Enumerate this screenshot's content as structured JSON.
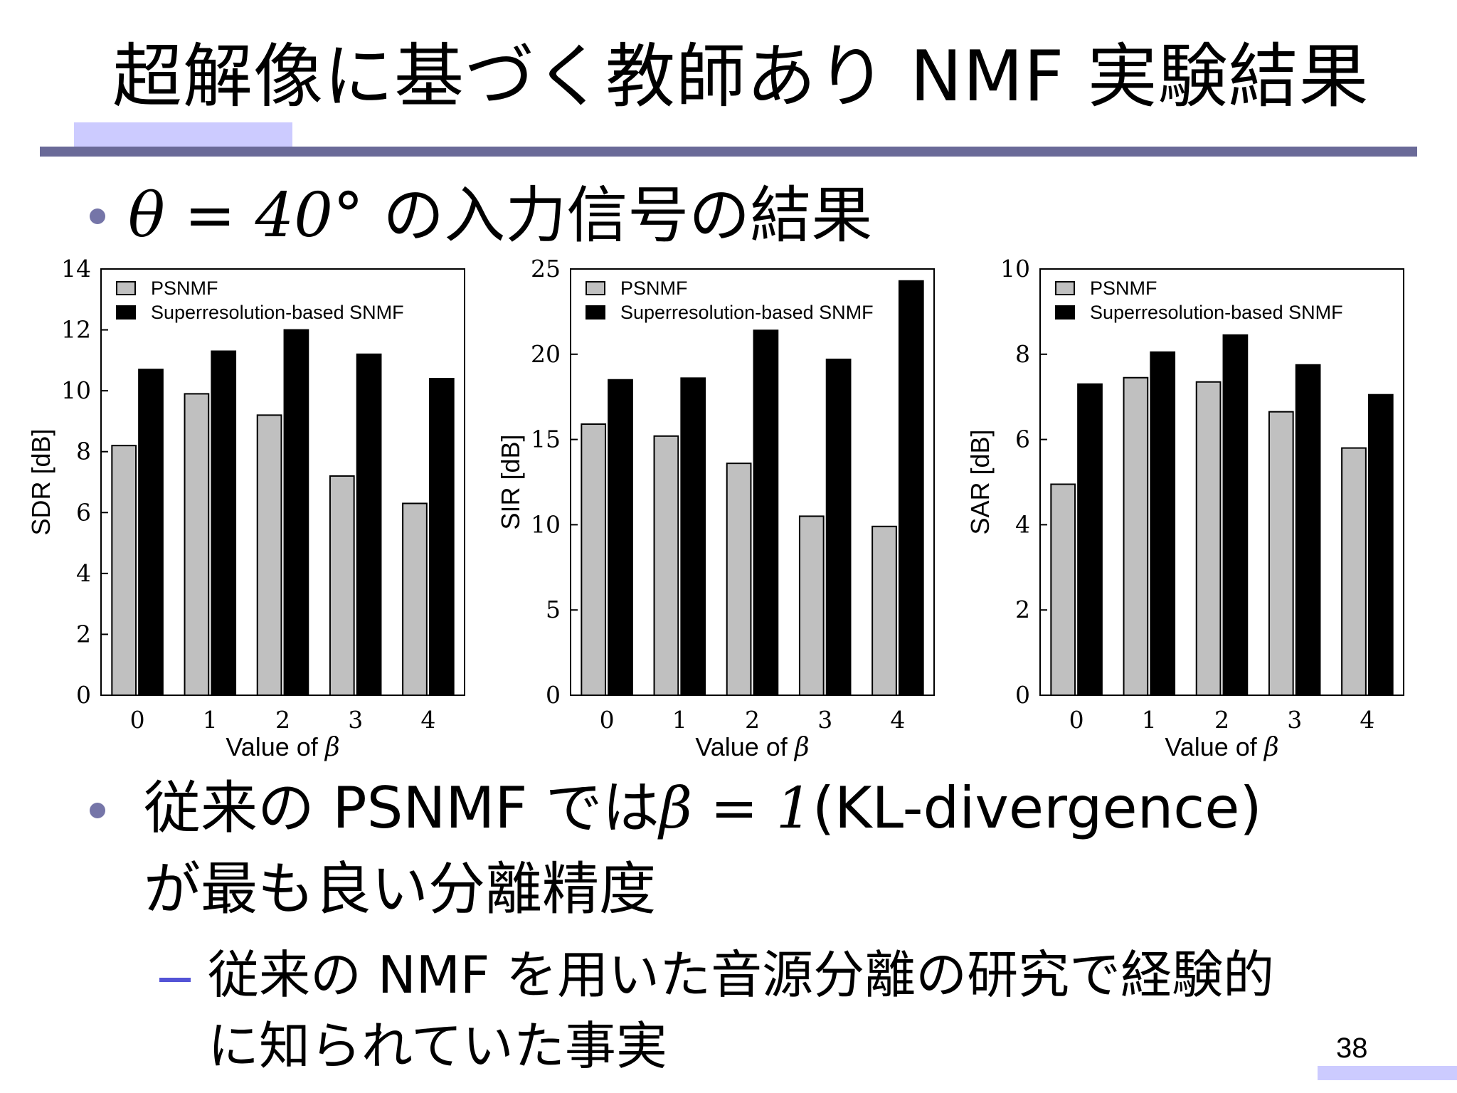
{
  "slide": {
    "title": "超解像に基づく教師あり NMF 実験結果",
    "bullet1": {
      "math": "θ = 40°",
      "text": " の入力信号の結果"
    },
    "bullet2": {
      "pre": "従来の PSNMF では",
      "math": "β = 1",
      "post": "(KL-divergence)",
      "line2": "が最も良い分離精度"
    },
    "sub_bullet": {
      "line1": "従来の NMF を用いた音源分離の研究で経験的",
      "line2": "に知られていた事実"
    },
    "page_number": "38"
  },
  "colors": {
    "psnmf": "#c0c0c0",
    "superres": "#000000",
    "rule": "#6a6a98",
    "accent": "#cccbff",
    "bullet": "#7575a8",
    "dash": "#5353d6"
  },
  "chart_data": [
    {
      "type": "bar",
      "categories": [
        "0",
        "1",
        "2",
        "3",
        "4"
      ],
      "xlabel": "Value of β",
      "ylabel": "SDR [dB]",
      "ylim": [
        0,
        14
      ],
      "yticks": [
        0,
        2,
        4,
        6,
        8,
        10,
        12,
        14
      ],
      "legend_position": "top-left",
      "series": [
        {
          "name": "PSNMF",
          "values": [
            8.2,
            9.9,
            9.2,
            7.2,
            6.3
          ]
        },
        {
          "name": "Superresolution-based SNMF",
          "values": [
            10.7,
            11.3,
            12.0,
            11.2,
            10.4
          ]
        }
      ]
    },
    {
      "type": "bar",
      "categories": [
        "0",
        "1",
        "2",
        "3",
        "4"
      ],
      "xlabel": "Value of β",
      "ylabel": "SIR [dB]",
      "ylim": [
        0,
        25
      ],
      "yticks": [
        0,
        5,
        10,
        15,
        20,
        25
      ],
      "legend_position": "top-left",
      "series": [
        {
          "name": "PSNMF",
          "values": [
            15.9,
            15.2,
            13.6,
            10.5,
            9.9
          ]
        },
        {
          "name": "Superresolution-based SNMF",
          "values": [
            18.5,
            18.6,
            21.4,
            19.7,
            24.3
          ]
        }
      ]
    },
    {
      "type": "bar",
      "categories": [
        "0",
        "1",
        "2",
        "3",
        "4"
      ],
      "xlabel": "Value of β",
      "ylabel": "SAR [dB]",
      "ylim": [
        0,
        10
      ],
      "yticks": [
        0,
        2,
        4,
        6,
        8,
        10
      ],
      "legend_position": "top-left",
      "series": [
        {
          "name": "PSNMF",
          "values": [
            4.95,
            7.45,
            7.35,
            6.65,
            5.8
          ]
        },
        {
          "name": "Superresolution-based SNMF",
          "values": [
            7.3,
            8.05,
            8.45,
            7.75,
            7.05
          ]
        }
      ]
    }
  ]
}
